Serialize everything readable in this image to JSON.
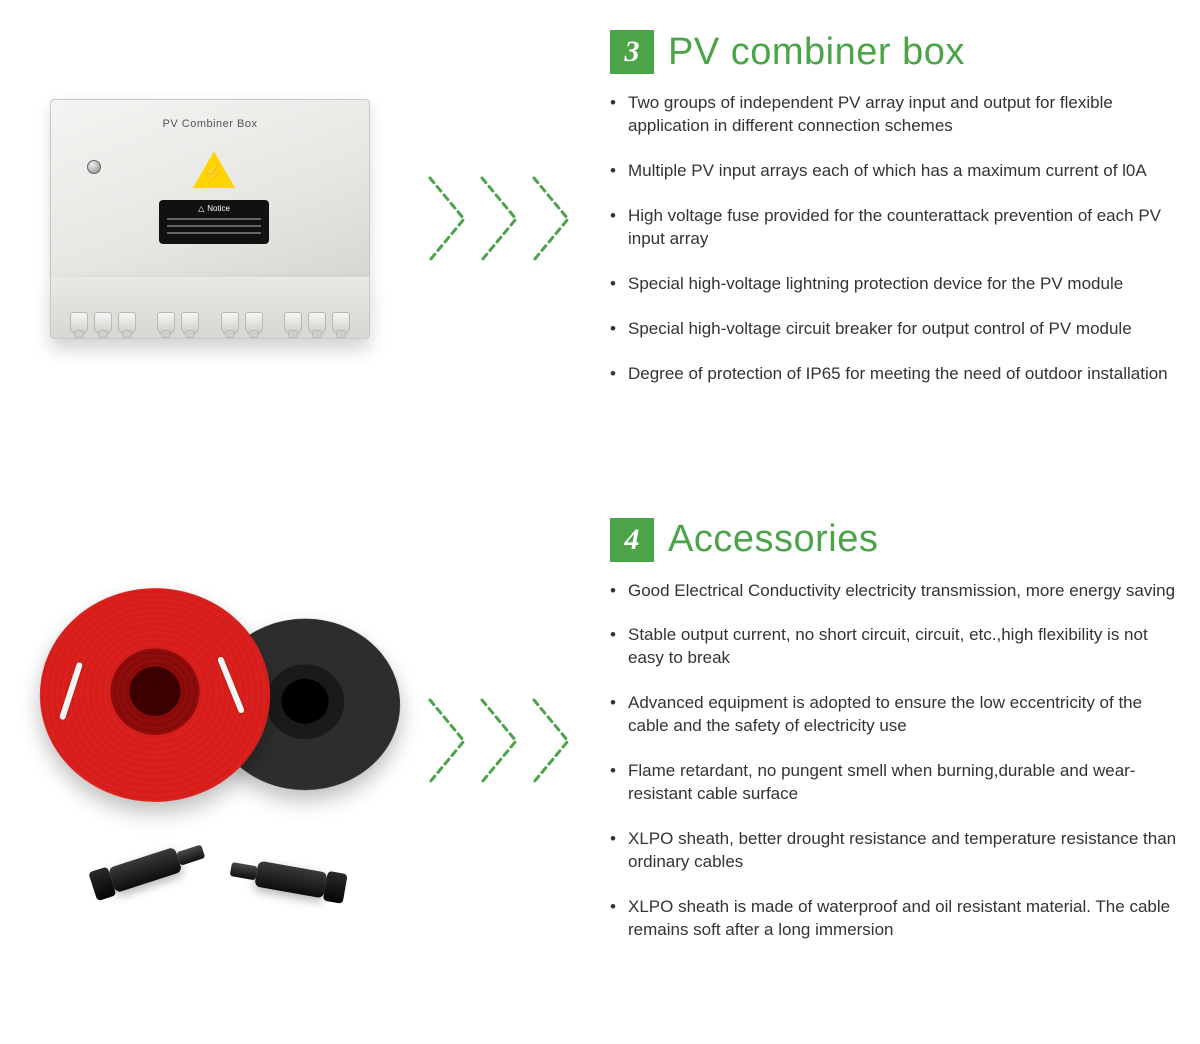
{
  "colors": {
    "brand_green": "#4ca449",
    "text": "#333333",
    "chevron_stroke": "#4ca449",
    "background": "#ffffff"
  },
  "chevrons": {
    "count": 3,
    "width": 44,
    "height": 90,
    "stroke_width": 3,
    "dash": "6 5"
  },
  "sections": [
    {
      "number": "3",
      "title": "PV combiner box",
      "image_label": "PV Combiner Box",
      "notice_label": "Notice",
      "features": [
        "Two groups of independent PV array input and output for flexible application in different connection schemes",
        "Multiple PV input arrays each of which has a maximum current of l0A",
        "High voltage fuse provided for the counterattack prevention of each PV input array",
        "Special high-voltage lightning protection device for the PV module",
        "Special high-voltage circuit breaker for output control of PV module",
        "Degree of protection of IP65 for meeting the need of outdoor installation"
      ]
    },
    {
      "number": "4",
      "title": "Accessories",
      "features": [
        "Good Electrical Conductivity electricity transmission, more energy saving",
        "Stable output current, no short circuit, circuit, etc.,high flexibility is not easy to break",
        "Advanced equipment is adopted to ensure the low eccentricity of the cable and the safety of electricity use",
        "Flame retardant, no pungent smell when burning,durable and wear-resistant cable surface",
        "XLPO sheath, better drought resistance and temperature resistance than ordinary cables",
        "XLPO sheath is made of waterproof and oil resistant material. The cable remains soft after a long immersion"
      ]
    }
  ]
}
